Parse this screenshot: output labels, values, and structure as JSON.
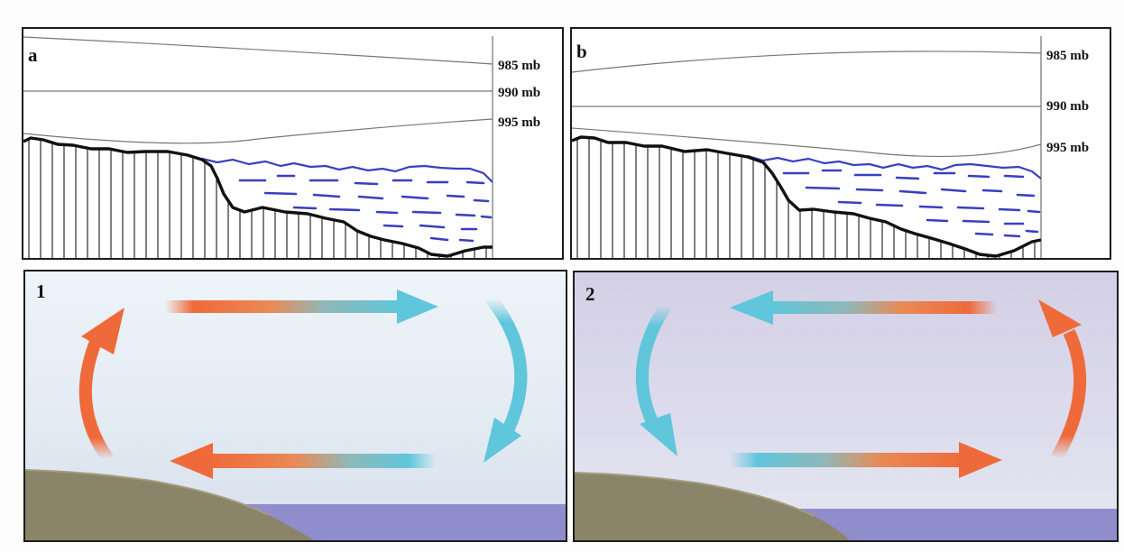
{
  "panels": {
    "a": {
      "label": "a",
      "isobars": [
        "985 mb",
        "990 mb",
        "995 mb"
      ]
    },
    "b": {
      "label": "b",
      "isobars": [
        "985 mb",
        "990 mb",
        "995 mb"
      ]
    },
    "one": {
      "label": "1"
    },
    "two": {
      "label": "2"
    }
  },
  "colors": {
    "warm_arrow": "#ef6a3a",
    "cool_arrow": "#5fc6dc",
    "water_lines": "#3a3fc0",
    "land_outline": "#111111",
    "sky_panel_1": "#e6eef6",
    "sky_panel_2": "#d9d7ea",
    "ground": "#8a8468",
    "sea": "#8f8dcc"
  }
}
